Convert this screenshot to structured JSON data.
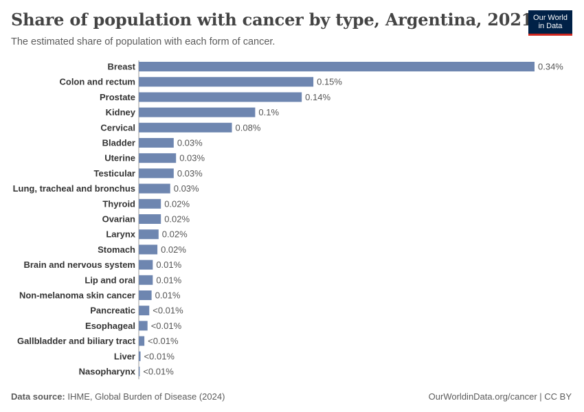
{
  "title": "Share of population with cancer by type, Argentina, 2021",
  "subtitle": "The estimated share of population with each form of cancer.",
  "logo": {
    "line1": "Our World",
    "line2": "in Data"
  },
  "footer": {
    "source_label": "Data source:",
    "source_text": "IHME, Global Burden of Disease (2024)",
    "credit": "OurWorldinData.org/cancer | CC BY"
  },
  "colors": {
    "bar": "#6e86b0",
    "label": "#333333",
    "value": "#555555"
  },
  "chart_data": {
    "type": "bar",
    "orientation": "horizontal",
    "title": "Share of population with cancer by type, Argentina, 2021",
    "subtitle": "The estimated share of population with each form of cancer.",
    "unit": "%",
    "categories": [
      "Breast",
      "Colon and rectum",
      "Prostate",
      "Kidney",
      "Cervical",
      "Bladder",
      "Uterine",
      "Testicular",
      "Lung, tracheal and bronchus",
      "Thyroid",
      "Ovarian",
      "Larynx",
      "Stomach",
      "Brain and nervous system",
      "Lip and oral",
      "Non-melanoma skin cancer",
      "Pancreatic",
      "Esophageal",
      "Gallbladder and biliary tract",
      "Liver",
      "Nasopharynx"
    ],
    "values": [
      0.34,
      0.15,
      0.14,
      0.1,
      0.08,
      0.03,
      0.032,
      0.03,
      0.027,
      0.019,
      0.019,
      0.017,
      0.016,
      0.012,
      0.012,
      0.011,
      0.009,
      0.0075,
      0.0048,
      0.0015,
      0.0008
    ],
    "value_labels": [
      "0.34%",
      "0.15%",
      "0.14%",
      "0.1%",
      "0.08%",
      "0.03%",
      "0.03%",
      "0.03%",
      "0.03%",
      "0.02%",
      "0.02%",
      "0.02%",
      "0.02%",
      "0.01%",
      "0.01%",
      "0.01%",
      "<0.01%",
      "<0.01%",
      "<0.01%",
      "<0.01%",
      "<0.01%"
    ],
    "xlim": [
      0,
      0.34
    ],
    "grid": false,
    "legend": "none"
  }
}
